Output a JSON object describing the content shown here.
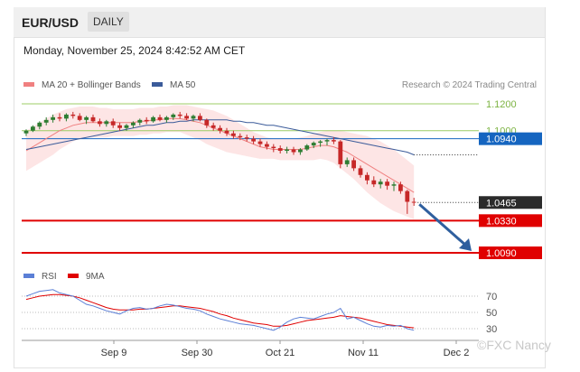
{
  "header": {
    "symbol": "EUR/USD",
    "timeframe": "DAILY"
  },
  "timestamp": "Monday, November 25, 2024 8:42:52 AM CET",
  "colors": {
    "bull": "#2e7d32",
    "bear": "#c62828",
    "ma20": "#f08080",
    "band": "#fde0e0",
    "ma50": "#3b5b9a",
    "resistance": "#9ccc65",
    "current": "#1565c0",
    "support": "#e00000",
    "last_price": "#2b2b2b",
    "rsi": "#5b7fd6",
    "rsi_ma": "#e00000",
    "arrow": "#2f5f9e"
  },
  "chart_data": {
    "type": "candlestick",
    "legend": [
      {
        "name": "MA 20 + Bollinger Bands",
        "color": "#f08080"
      },
      {
        "name": "MA 50",
        "color": "#3b5b9a"
      }
    ],
    "credit": "Research © 2024 Trading Central",
    "ylim": [
      0.998,
      1.125
    ],
    "candles": [
      [
        1.098,
        1.101,
        1.096,
        1.1
      ],
      [
        1.1,
        1.104,
        1.099,
        1.103
      ],
      [
        1.103,
        1.107,
        1.101,
        1.106
      ],
      [
        1.106,
        1.11,
        1.104,
        1.108
      ],
      [
        1.108,
        1.112,
        1.106,
        1.11
      ],
      [
        1.11,
        1.113,
        1.107,
        1.109
      ],
      [
        1.109,
        1.113,
        1.107,
        1.112
      ],
      [
        1.112,
        1.114,
        1.109,
        1.111
      ],
      [
        1.111,
        1.113,
        1.107,
        1.108
      ],
      [
        1.108,
        1.111,
        1.105,
        1.11
      ],
      [
        1.11,
        1.112,
        1.106,
        1.107
      ],
      [
        1.107,
        1.109,
        1.103,
        1.105
      ],
      [
        1.105,
        1.108,
        1.103,
        1.107
      ],
      [
        1.107,
        1.109,
        1.102,
        1.104
      ],
      [
        1.104,
        1.106,
        1.1,
        1.102
      ],
      [
        1.102,
        1.105,
        1.1,
        1.104
      ],
      [
        1.104,
        1.107,
        1.102,
        1.106
      ],
      [
        1.106,
        1.109,
        1.104,
        1.108
      ],
      [
        1.108,
        1.11,
        1.105,
        1.107
      ],
      [
        1.107,
        1.111,
        1.106,
        1.11
      ],
      [
        1.11,
        1.112,
        1.107,
        1.108
      ],
      [
        1.108,
        1.111,
        1.106,
        1.11
      ],
      [
        1.11,
        1.113,
        1.108,
        1.112
      ],
      [
        1.112,
        1.114,
        1.109,
        1.111
      ],
      [
        1.111,
        1.113,
        1.108,
        1.109
      ],
      [
        1.109,
        1.112,
        1.107,
        1.111
      ],
      [
        1.111,
        1.113,
        1.107,
        1.108
      ],
      [
        1.108,
        1.109,
        1.102,
        1.104
      ],
      [
        1.104,
        1.106,
        1.1,
        1.102
      ],
      [
        1.102,
        1.104,
        1.098,
        1.1
      ],
      [
        1.1,
        1.102,
        1.096,
        1.098
      ],
      [
        1.098,
        1.1,
        1.094,
        1.096
      ],
      [
        1.096,
        1.098,
        1.093,
        1.095
      ],
      [
        1.095,
        1.097,
        1.092,
        1.094
      ],
      [
        1.094,
        1.096,
        1.09,
        1.092
      ],
      [
        1.092,
        1.094,
        1.088,
        1.09
      ],
      [
        1.09,
        1.092,
        1.086,
        1.088
      ],
      [
        1.088,
        1.09,
        1.084,
        1.087
      ],
      [
        1.087,
        1.089,
        1.083,
        1.085
      ],
      [
        1.085,
        1.088,
        1.083,
        1.086
      ],
      [
        1.086,
        1.088,
        1.082,
        1.084
      ],
      [
        1.084,
        1.087,
        1.082,
        1.086
      ],
      [
        1.086,
        1.09,
        1.085,
        1.089
      ],
      [
        1.089,
        1.092,
        1.087,
        1.091
      ],
      [
        1.091,
        1.093,
        1.088,
        1.092
      ],
      [
        1.092,
        1.094,
        1.089,
        1.093
      ],
      [
        1.093,
        1.095,
        1.09,
        1.092
      ],
      [
        1.092,
        1.093,
        1.072,
        1.075
      ],
      [
        1.075,
        1.08,
        1.073,
        1.078
      ],
      [
        1.078,
        1.08,
        1.07,
        1.072
      ],
      [
        1.072,
        1.074,
        1.065,
        1.067
      ],
      [
        1.067,
        1.069,
        1.06,
        1.063
      ],
      [
        1.063,
        1.066,
        1.058,
        1.06
      ],
      [
        1.06,
        1.064,
        1.057,
        1.062
      ],
      [
        1.062,
        1.064,
        1.056,
        1.059
      ],
      [
        1.059,
        1.062,
        1.055,
        1.06
      ],
      [
        1.06,
        1.062,
        1.053,
        1.055
      ],
      [
        1.055,
        1.056,
        1.038,
        1.047
      ],
      [
        1.047,
        1.05,
        1.044,
        1.0465
      ]
    ],
    "ma20": [
      1.085,
      1.088,
      1.091,
      1.094,
      1.097,
      1.1,
      1.102,
      1.104,
      1.105,
      1.106,
      1.106,
      1.106,
      1.106,
      1.106,
      1.106,
      1.106,
      1.106,
      1.107,
      1.107,
      1.108,
      1.108,
      1.109,
      1.109,
      1.109,
      1.108,
      1.107,
      1.106,
      1.104,
      1.102,
      1.1,
      1.098,
      1.096,
      1.094,
      1.092,
      1.09,
      1.088,
      1.087,
      1.086,
      1.086,
      1.086,
      1.086,
      1.086,
      1.087,
      1.088,
      1.089,
      1.089,
      1.088,
      1.086,
      1.084,
      1.081,
      1.078,
      1.075,
      1.072,
      1.069,
      1.066,
      1.063,
      1.06,
      1.057,
      1.054
    ],
    "band_upper": [
      1.1,
      1.103,
      1.106,
      1.109,
      1.112,
      1.114,
      1.116,
      1.117,
      1.118,
      1.118,
      1.118,
      1.117,
      1.117,
      1.116,
      1.116,
      1.116,
      1.116,
      1.117,
      1.117,
      1.117,
      1.118,
      1.118,
      1.119,
      1.119,
      1.119,
      1.118,
      1.117,
      1.116,
      1.115,
      1.113,
      1.111,
      1.108,
      1.105,
      1.102,
      1.099,
      1.097,
      1.095,
      1.094,
      1.094,
      1.094,
      1.094,
      1.095,
      1.096,
      1.098,
      1.099,
      1.1,
      1.1,
      1.1,
      1.099,
      1.098,
      1.097,
      1.096,
      1.094,
      1.092,
      1.089,
      1.086,
      1.082,
      1.078,
      1.074
    ],
    "band_lower": [
      1.07,
      1.073,
      1.076,
      1.079,
      1.082,
      1.086,
      1.089,
      1.092,
      1.094,
      1.095,
      1.095,
      1.095,
      1.095,
      1.096,
      1.096,
      1.096,
      1.096,
      1.097,
      1.097,
      1.098,
      1.098,
      1.099,
      1.099,
      1.099,
      1.097,
      1.095,
      1.093,
      1.09,
      1.088,
      1.086,
      1.084,
      1.083,
      1.082,
      1.081,
      1.08,
      1.079,
      1.079,
      1.079,
      1.078,
      1.078,
      1.078,
      1.078,
      1.078,
      1.078,
      1.079,
      1.078,
      1.076,
      1.072,
      1.068,
      1.064,
      1.059,
      1.054,
      1.05,
      1.046,
      1.043,
      1.04,
      1.038,
      1.036,
      1.034
    ],
    "ma50": [
      1.086,
      1.087,
      1.088,
      1.089,
      1.09,
      1.091,
      1.092,
      1.093,
      1.094,
      1.095,
      1.096,
      1.097,
      1.098,
      1.099,
      1.1,
      1.101,
      1.102,
      1.103,
      1.104,
      1.104,
      1.105,
      1.106,
      1.106,
      1.107,
      1.107,
      1.108,
      1.108,
      1.108,
      1.108,
      1.108,
      1.108,
      1.107,
      1.107,
      1.106,
      1.106,
      1.105,
      1.104,
      1.104,
      1.103,
      1.102,
      1.101,
      1.1,
      1.099,
      1.098,
      1.097,
      1.096,
      1.095,
      1.094,
      1.093,
      1.092,
      1.091,
      1.09,
      1.089,
      1.088,
      1.087,
      1.086,
      1.085,
      1.084,
      1.082
    ],
    "levels": [
      {
        "value": 1.12,
        "label": "1.1200",
        "kind": "resistance"
      },
      {
        "value": 1.1,
        "label": "1.1000",
        "kind": "resistance"
      },
      {
        "value": 1.094,
        "label": "1.0940",
        "kind": "current"
      },
      {
        "value": 1.0465,
        "label": "1.0465",
        "kind": "last"
      },
      {
        "value": 1.033,
        "label": "1.0330",
        "kind": "support"
      },
      {
        "value": 1.009,
        "label": "1.0090",
        "kind": "support"
      }
    ],
    "forecast": {
      "from": 1.0465,
      "to": 1.009
    },
    "rsi_legend": [
      {
        "name": "RSI",
        "color": "#5b7fd6"
      },
      {
        "name": "9MA",
        "color": "#e00000"
      }
    ],
    "rsi_ticks": [
      70,
      50,
      30
    ],
    "rsi": [
      70,
      73,
      76,
      77,
      78,
      74,
      72,
      70,
      65,
      60,
      58,
      55,
      52,
      50,
      48,
      52,
      55,
      56,
      54,
      55,
      58,
      60,
      59,
      57,
      55,
      54,
      52,
      48,
      45,
      42,
      40,
      38,
      36,
      35,
      34,
      32,
      30,
      28,
      32,
      38,
      42,
      44,
      43,
      42,
      45,
      48,
      50,
      55,
      42,
      44,
      40,
      36,
      33,
      32,
      34,
      33,
      34,
      30,
      28
    ],
    "rsi_ma": [
      66,
      68,
      70,
      71,
      72,
      72,
      71,
      70,
      68,
      65,
      62,
      59,
      56,
      54,
      53,
      53,
      53,
      54,
      54,
      55,
      56,
      57,
      58,
      58,
      57,
      56,
      55,
      53,
      51,
      48,
      46,
      43,
      41,
      39,
      37,
      36,
      35,
      33,
      33,
      34,
      36,
      38,
      40,
      41,
      42,
      43,
      44,
      46,
      45,
      44,
      43,
      41,
      39,
      37,
      35,
      34,
      33,
      32,
      31
    ],
    "x_labels": [
      "Sep 9",
      "Sep 30",
      "Oct 21",
      "Nov 11",
      "Dec 2"
    ],
    "watermark": "©FXC Nancy"
  }
}
